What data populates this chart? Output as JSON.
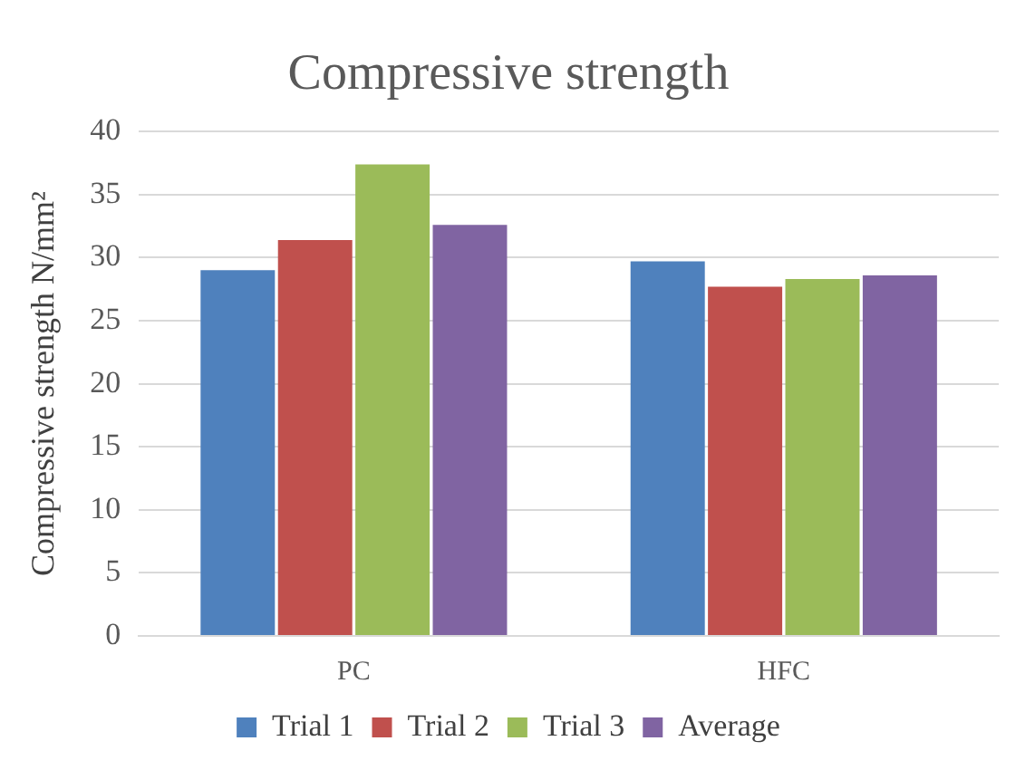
{
  "chart_data": {
    "type": "bar",
    "title": "Compressive strength",
    "ylabel": "Compressive strength N/mm²",
    "categories": [
      "PC",
      "HFC"
    ],
    "series": [
      {
        "name": "Trial 1",
        "color": "#4f81bd",
        "values": [
          29.0,
          29.7
        ]
      },
      {
        "name": "Trial 2",
        "color": "#c0504d",
        "values": [
          31.4,
          27.7
        ]
      },
      {
        "name": "Trial 3",
        "color": "#9bbb59",
        "values": [
          37.4,
          28.3
        ]
      },
      {
        "name": "Average",
        "color": "#8064a2",
        "values": [
          32.6,
          28.6
        ]
      }
    ],
    "ylim": [
      0,
      40
    ],
    "yticks": [
      0,
      5,
      10,
      15,
      20,
      25,
      30,
      35,
      40
    ],
    "grid": "y",
    "legend": "bottom"
  }
}
